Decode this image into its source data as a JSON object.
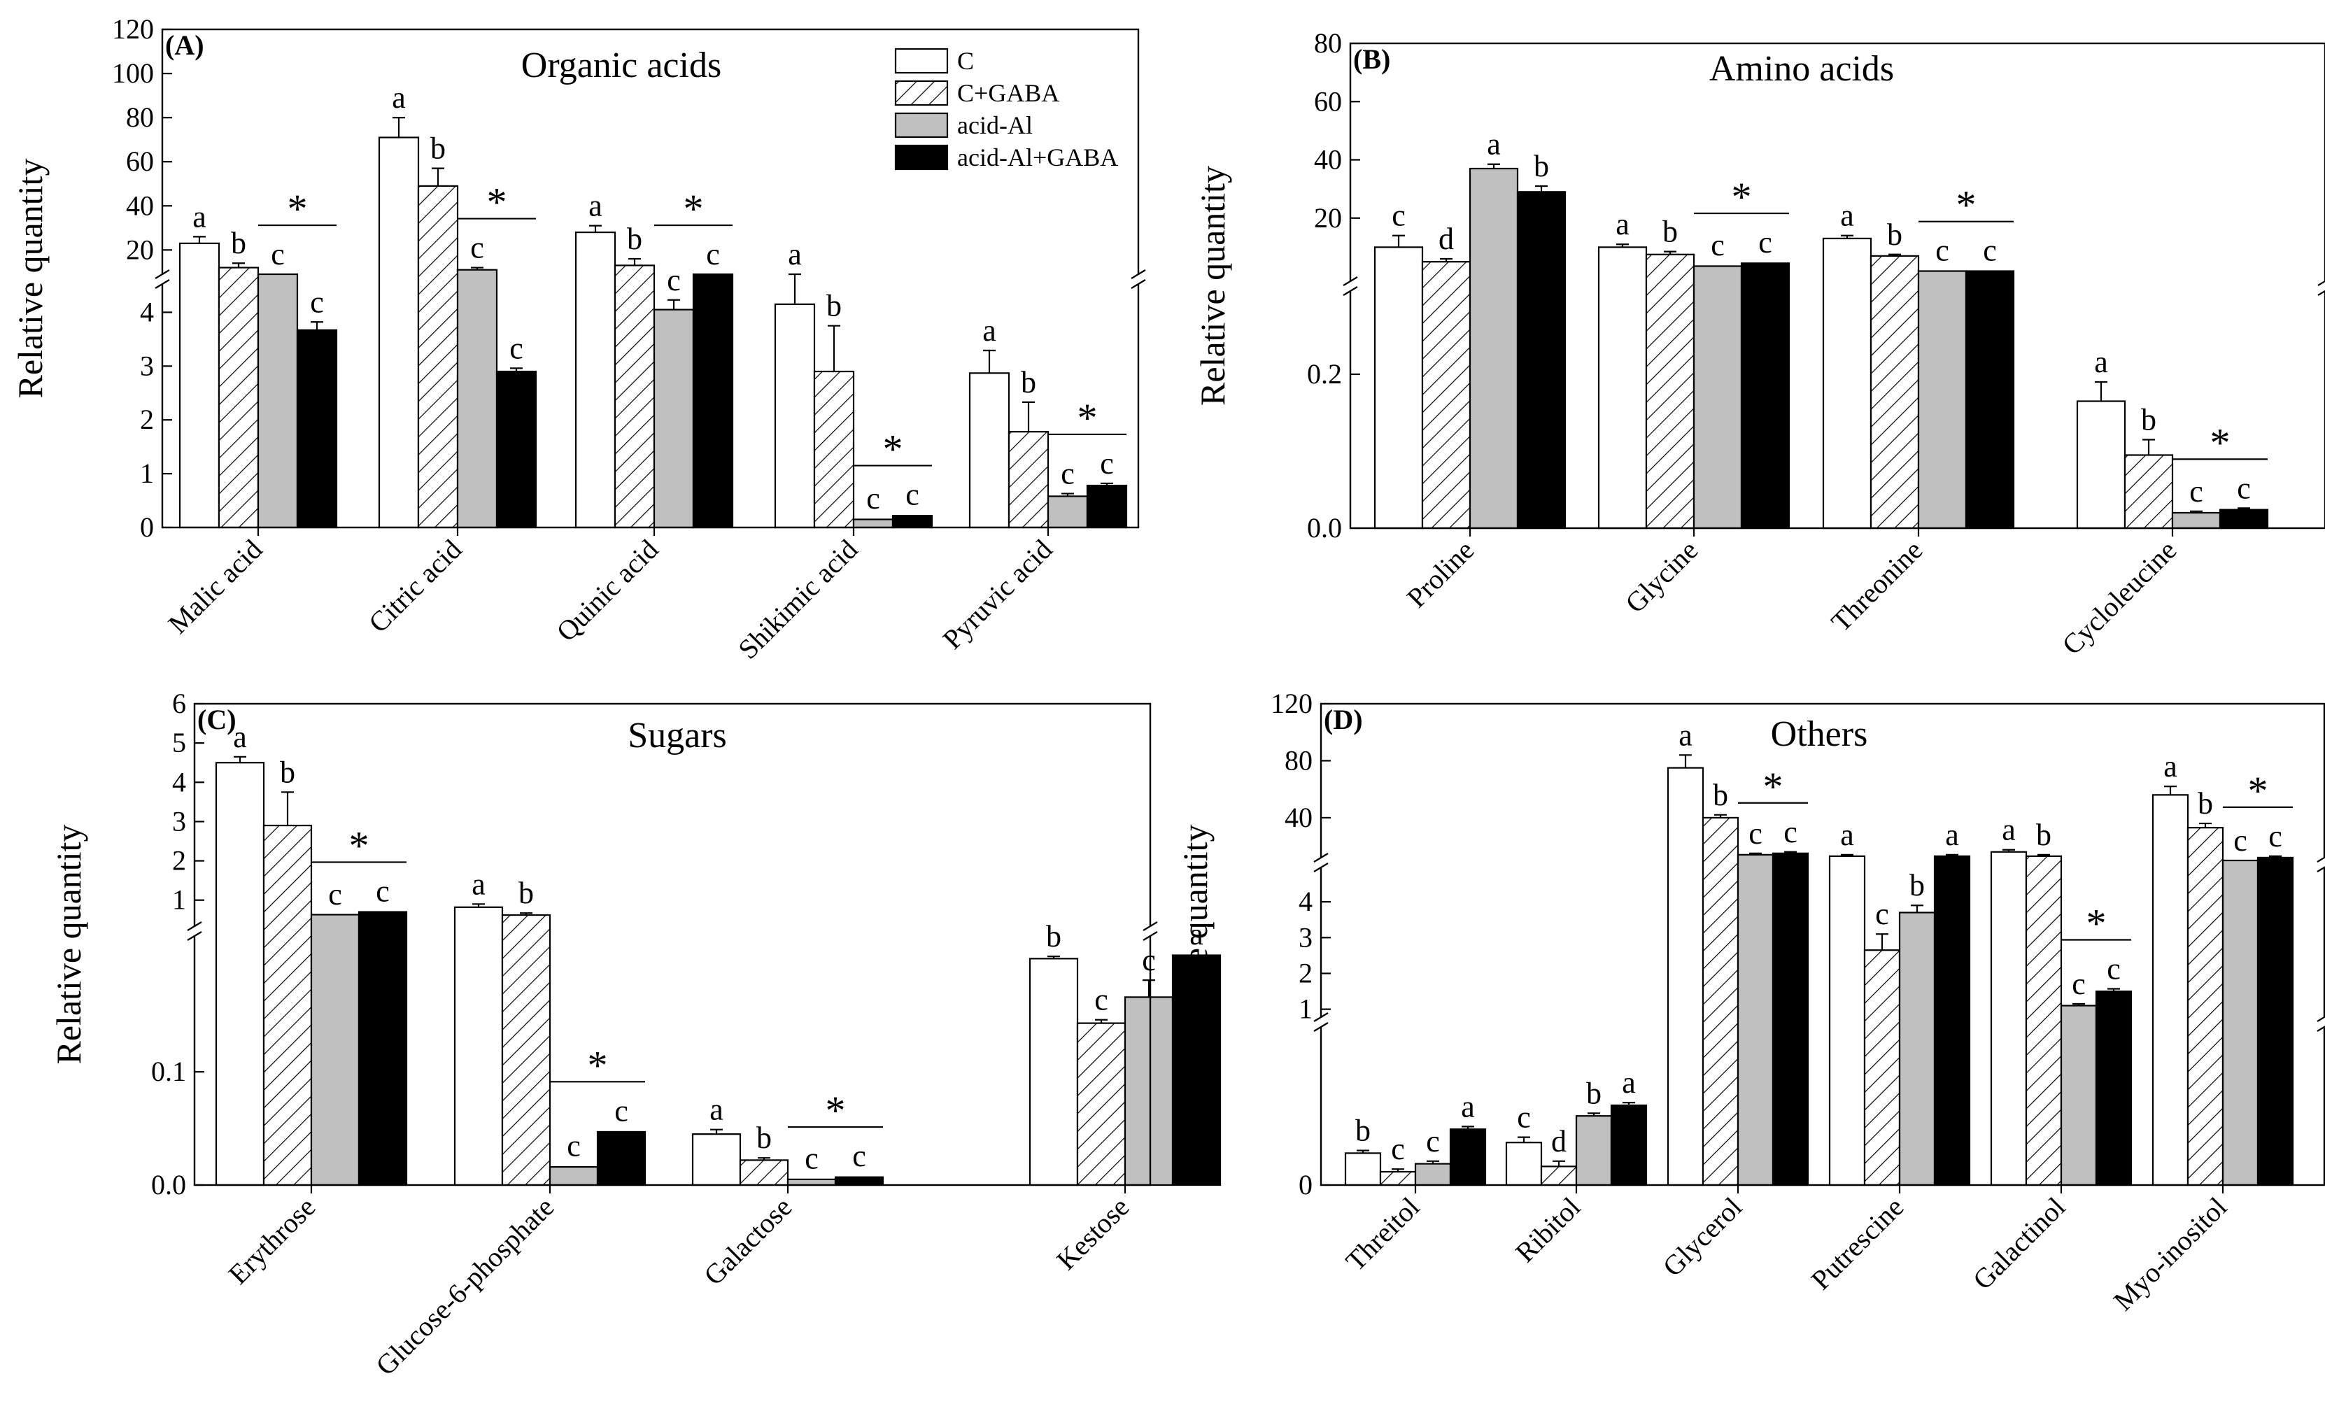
{
  "series_names": [
    "C",
    "C+GABA",
    "acid-Al",
    "acid-Al+GABA"
  ],
  "colors": {
    "c": "#ffffff",
    "gaba": "#ffffff",
    "al": "#c0c0c0",
    "algaba": "#000000",
    "stroke": "#000000"
  },
  "y_axis_label": "Relative quantity",
  "chart_data": [
    {
      "panel": "(A)",
      "title": "Organic acids",
      "type": "bar",
      "ylabel": "Relative quantity",
      "y_ticks": [
        "0",
        "1",
        "2",
        "3",
        "4",
        "20",
        "40",
        "60",
        "80",
        "100",
        "120"
      ],
      "axis_break": "between 4 and 20 (scale change)",
      "categories": [
        "Malic acid",
        "Citric acid",
        "Quinic acid",
        "Shikimic acid",
        "Pyruvic acid"
      ],
      "series": [
        {
          "name": "C",
          "values": [
            23,
            71,
            28,
            4.15,
            2.87
          ],
          "errors": [
            3,
            9,
            3,
            0.45,
            0.42
          ]
        },
        {
          "name": "C+GABA",
          "values": [
            12,
            49,
            13,
            2.9,
            1.78
          ],
          "errors": [
            2,
            8,
            3,
            0.85,
            0.55
          ]
        },
        {
          "name": "acid-Al",
          "values": [
            4.95,
            11,
            4.05,
            0.15,
            0.58
          ],
          "errors": [
            0.1,
            1,
            0.18,
            0.02,
            0.05
          ]
        },
        {
          "name": "acid-Al+GABA",
          "values": [
            3.67,
            2.9,
            4.95,
            0.22,
            0.78
          ],
          "errors": [
            0.15,
            0.06,
            0.15,
            0.02,
            0.04
          ]
        }
      ],
      "letters": [
        [
          "a",
          "b",
          "c",
          "c"
        ],
        [
          "a",
          "b",
          "c",
          "c"
        ],
        [
          "a",
          "b",
          "c",
          "c"
        ],
        [
          "a",
          "b",
          "c",
          "c"
        ],
        [
          "a",
          "b",
          "c",
          "c"
        ]
      ],
      "significance": [
        "*",
        "*",
        "*",
        "*",
        "*"
      ],
      "legend": [
        "C",
        "C+GABA",
        "acid-Al",
        "acid-Al+GABA"
      ],
      "legend_position": "top-right"
    },
    {
      "panel": "(B)",
      "title": "Amino acids",
      "type": "bar",
      "ylabel": "Relative quantity",
      "y_ticks": [
        "0.0",
        "0.2",
        "20",
        "40",
        "60",
        "80"
      ],
      "axis_break": "between 0.2 and 20 (scale change)",
      "categories": [
        "Proline",
        "Glycine",
        "Threonine",
        "Cycloleucine"
      ],
      "series": [
        {
          "name": "C",
          "values": [
            10,
            10,
            13,
            0.165
          ],
          "errors": [
            4,
            1,
            1,
            0.025
          ]
        },
        {
          "name": "C+GABA",
          "values": [
            5,
            7.5,
            7,
            0.095
          ],
          "errors": [
            1,
            1,
            0.5,
            0.02
          ]
        },
        {
          "name": "acid-Al",
          "values": [
            37,
            3.5,
            1.8,
            0.02
          ],
          "errors": [
            1.5,
            0.3,
            0.2,
            0.002
          ]
        },
        {
          "name": "acid-Al+GABA",
          "values": [
            29,
            4.5,
            1.8,
            0.024
          ],
          "errors": [
            2,
            0.3,
            0.2,
            0.002
          ]
        }
      ],
      "letters": [
        [
          "c",
          "d",
          "a",
          "b"
        ],
        [
          "a",
          "b",
          "c",
          "c"
        ],
        [
          "a",
          "b",
          "c",
          "c"
        ],
        [
          "a",
          "b",
          "c",
          "c"
        ]
      ],
      "significance": [
        "",
        "*",
        "*",
        "*"
      ]
    },
    {
      "panel": "(C)",
      "title": "Sugars",
      "type": "bar",
      "ylabel": "Relative quantity",
      "y_ticks": [
        "0.0",
        "0.1",
        "1",
        "2",
        "3",
        "4",
        "5",
        "6"
      ],
      "axis_break": "between 0.1 and 1 (scale change)",
      "categories": [
        "Erythrose",
        "Glucose-6-phosphate",
        "Galactose",
        "Kestose"
      ],
      "series": [
        {
          "name": "C",
          "values": [
            4.5,
            0.82,
            0.045,
            0.2
          ],
          "errors": [
            0.15,
            0.08,
            0.004,
            0.002
          ]
        },
        {
          "name": "C+GABA",
          "values": [
            2.9,
            0.62,
            0.022,
            0.143
          ],
          "errors": [
            0.85,
            0.05,
            0.002,
            0.003
          ]
        },
        {
          "name": "acid-Al",
          "values": [
            0.63,
            0.016,
            0.005,
            0.166
          ],
          "errors": [
            0.01,
            0.001,
            0.001,
            0.015
          ]
        },
        {
          "name": "acid-Al+GABA",
          "values": [
            0.7,
            0.047,
            0.007,
            0.203
          ],
          "errors": [
            0.02,
            0.001,
            0.001,
            0.001
          ]
        }
      ],
      "letters": [
        [
          "a",
          "b",
          "c",
          "c"
        ],
        [
          "a",
          "b",
          "c",
          "c"
        ],
        [
          "a",
          "b",
          "c",
          "c"
        ],
        [
          "b",
          "c",
          "c",
          "a"
        ]
      ],
      "significance": [
        "*",
        "*",
        "*",
        ""
      ]
    },
    {
      "panel": "(D)",
      "title": "Others",
      "type": "bar",
      "ylabel": "Relative quantity",
      "y_ticks": [
        "0",
        "1",
        "2",
        "3",
        "4",
        "40",
        "80",
        "120"
      ],
      "axis_break": "between 0 and 1 and between 4 and 40 (scale changes)",
      "categories": [
        "Threitol",
        "Ribitol",
        "Glycerol",
        "Putrescine",
        "Galactinol",
        "Myo-inositol"
      ],
      "series": [
        {
          "name": "C",
          "values": [
            0.12,
            0.16,
            75,
            13,
            16,
            56
          ],
          "errors": [
            0.01,
            0.02,
            9,
            1,
            1.5,
            6
          ]
        },
        {
          "name": "C+GABA",
          "values": [
            0.05,
            0.07,
            40,
            2.65,
            13,
            33
          ],
          "errors": [
            0.01,
            0.02,
            2,
            0.45,
            1,
            3
          ]
        },
        {
          "name": "acid-Al",
          "values": [
            0.08,
            0.26,
            14,
            3.7,
            1.1,
            4.8
          ],
          "errors": [
            0.01,
            0.01,
            1,
            0.2,
            0.05,
            0.3
          ]
        },
        {
          "name": "acid-Al+GABA",
          "values": [
            0.21,
            0.3,
            15,
            13,
            1.5,
            12
          ],
          "errors": [
            0.01,
            0.01,
            1,
            1,
            0.07,
            1
          ]
        }
      ],
      "letters": [
        [
          "b",
          "c",
          "c",
          "a"
        ],
        [
          "c",
          "d",
          "b",
          "a"
        ],
        [
          "a",
          "b",
          "c",
          "c"
        ],
        [
          "a",
          "c",
          "b",
          "a"
        ],
        [
          "a",
          "b",
          "c",
          "c"
        ],
        [
          "a",
          "b",
          "c",
          "c"
        ]
      ],
      "significance": [
        "",
        "",
        "*",
        "",
        "*",
        "*"
      ]
    }
  ]
}
